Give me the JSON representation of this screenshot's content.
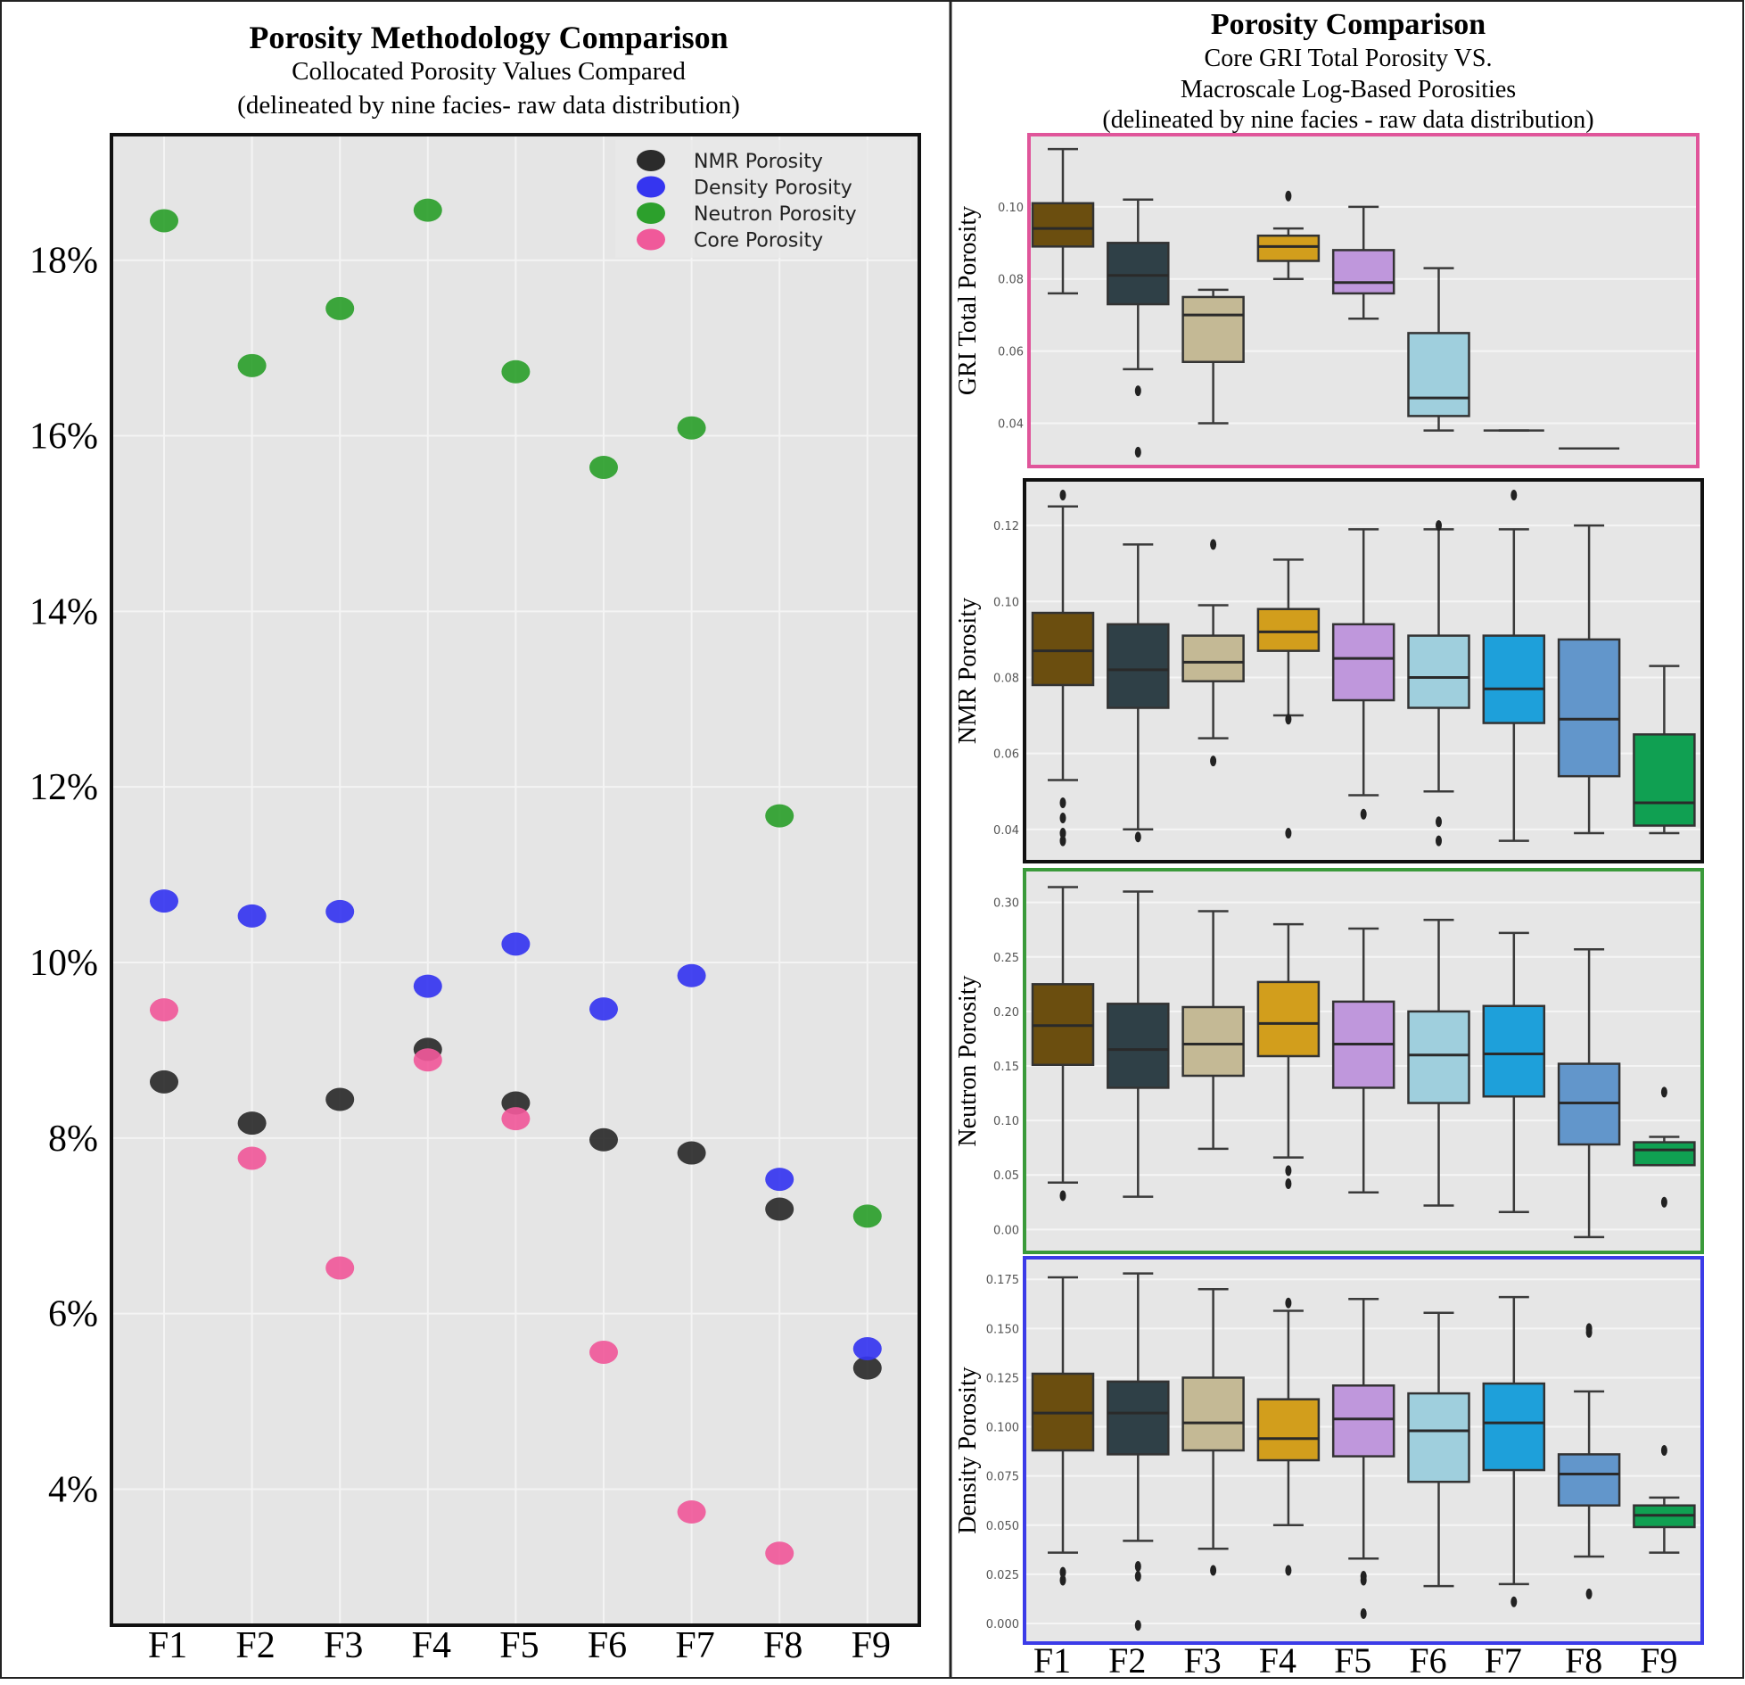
{
  "chart_data": [
    {
      "type": "scatter",
      "title": "Porosity Methodology Comparison",
      "subtitle": [
        "Collocated Porosity Values Compared",
        "(delineated by nine facies- raw data distribution)"
      ],
      "xlabel": "",
      "ylabel": "",
      "categories": [
        "F1",
        "F2",
        "F3",
        "F4",
        "F5",
        "F6",
        "F7",
        "F8",
        "F9"
      ],
      "ylim": [
        2.45,
        19.43
      ],
      "yticks": [
        4,
        6,
        8,
        10,
        12,
        14,
        16,
        18
      ],
      "ytick_labels": [
        "4%",
        "6%",
        "8%",
        "10%",
        "12%",
        "14%",
        "16%",
        "18%"
      ],
      "grid": true,
      "legend_position": "top-right",
      "series": [
        {
          "name": "NMR Porosity",
          "color": "#2b2b2b",
          "values": [
            8.64,
            8.17,
            8.44,
            9.01,
            8.4,
            7.98,
            7.83,
            7.19,
            5.38
          ]
        },
        {
          "name": "Density Porosity",
          "color": "#3535f0",
          "values": [
            10.7,
            10.53,
            10.58,
            9.73,
            10.21,
            9.47,
            9.85,
            7.53,
            5.6
          ]
        },
        {
          "name": "Neutron Porosity",
          "color": "#2ca02c",
          "values": [
            18.45,
            16.8,
            17.45,
            18.57,
            16.73,
            15.64,
            16.09,
            11.67,
            7.11
          ]
        },
        {
          "name": "Core Porosity",
          "color": "#f0599a",
          "values": [
            9.46,
            7.77,
            6.52,
            8.89,
            8.22,
            5.56,
            3.74,
            3.27,
            null
          ]
        }
      ]
    },
    {
      "type": "box",
      "title": "Porosity Comparison",
      "subtitle": [
        "Core GRI Total Porosity VS.",
        "Macroscale Log-Based Porosities",
        "(delineated by nine facies - raw data distribution)"
      ],
      "categories": [
        "F1",
        "F2",
        "F3",
        "F4",
        "F5",
        "F6",
        "F7",
        "F8",
        "F9"
      ],
      "facies_colors": [
        "#6b4e0f",
        "#2f4047",
        "#c4b995",
        "#d29e1c",
        "#bf97dc",
        "#9fcfdd",
        "#1ea0da",
        "#6296cb",
        "#10a052"
      ],
      "panels": [
        {
          "ylabel": "GRI Total Porosity",
          "frame_color": "#e0559a",
          "ylim": [
            0.028,
            0.12
          ],
          "yticks": [
            "0.04",
            "0.06",
            "0.08",
            "0.10"
          ],
          "boxes": [
            {
              "low": 0.076,
              "q1": 0.089,
              "median": 0.094,
              "q3": 0.101,
              "high": 0.116,
              "fliers": []
            },
            {
              "low": 0.055,
              "q1": 0.073,
              "median": 0.081,
              "q3": 0.09,
              "high": 0.102,
              "fliers": [
                0.049,
                0.032
              ]
            },
            {
              "low": 0.04,
              "q1": 0.057,
              "median": 0.07,
              "q3": 0.075,
              "high": 0.077,
              "fliers": []
            },
            {
              "low": 0.08,
              "q1": 0.085,
              "median": 0.089,
              "q3": 0.092,
              "high": 0.094,
              "fliers": [
                0.103
              ]
            },
            {
              "low": 0.069,
              "q1": 0.076,
              "median": 0.079,
              "q3": 0.088,
              "high": 0.1,
              "fliers": []
            },
            {
              "low": 0.038,
              "q1": 0.042,
              "median": 0.047,
              "q3": 0.065,
              "high": 0.083,
              "fliers": []
            },
            {
              "low": 0.038,
              "q1": 0.038,
              "median": 0.038,
              "q3": 0.038,
              "high": 0.038,
              "fliers": []
            },
            {
              "low": 0.033,
              "q1": 0.033,
              "median": 0.033,
              "q3": 0.033,
              "high": 0.033,
              "fliers": []
            },
            null
          ]
        },
        {
          "ylabel": "NMR Porosity",
          "frame_color": "#111111",
          "ylim": [
            0.0315,
            0.132
          ],
          "yticks": [
            "0.04",
            "0.06",
            "0.08",
            "0.10",
            "0.12"
          ],
          "boxes": [
            {
              "low": 0.053,
              "q1": 0.078,
              "median": 0.087,
              "q3": 0.097,
              "high": 0.125,
              "fliers": [
                0.128,
                0.047,
                0.043,
                0.039,
                0.037
              ]
            },
            {
              "low": 0.04,
              "q1": 0.072,
              "median": 0.082,
              "q3": 0.094,
              "high": 0.115,
              "fliers": [
                0.038
              ]
            },
            {
              "low": 0.064,
              "q1": 0.079,
              "median": 0.084,
              "q3": 0.091,
              "high": 0.099,
              "fliers": [
                0.115,
                0.058
              ]
            },
            {
              "low": 0.07,
              "q1": 0.087,
              "median": 0.092,
              "q3": 0.098,
              "high": 0.111,
              "fliers": [
                0.069,
                0.039
              ]
            },
            {
              "low": 0.049,
              "q1": 0.074,
              "median": 0.085,
              "q3": 0.094,
              "high": 0.119,
              "fliers": [
                0.044
              ]
            },
            {
              "low": 0.05,
              "q1": 0.072,
              "median": 0.08,
              "q3": 0.091,
              "high": 0.119,
              "fliers": [
                0.12,
                0.042,
                0.037
              ]
            },
            {
              "low": 0.037,
              "q1": 0.068,
              "median": 0.077,
              "q3": 0.091,
              "high": 0.119,
              "fliers": [
                0.128
              ]
            },
            {
              "low": 0.039,
              "q1": 0.054,
              "median": 0.069,
              "q3": 0.09,
              "high": 0.12,
              "fliers": []
            },
            {
              "low": 0.039,
              "q1": 0.041,
              "median": 0.047,
              "q3": 0.065,
              "high": 0.083,
              "fliers": []
            }
          ]
        },
        {
          "ylabel": "Neutron Porosity",
          "frame_color": "#3a9a3a",
          "ylim": [
            -0.021,
            0.33
          ],
          "yticks": [
            "0.00",
            "0.05",
            "0.10",
            "0.15",
            "0.20",
            "0.25",
            "0.30"
          ],
          "boxes": [
            {
              "low": 0.043,
              "q1": 0.151,
              "median": 0.187,
              "q3": 0.225,
              "high": 0.314,
              "fliers": [
                0.031
              ]
            },
            {
              "low": 0.03,
              "q1": 0.13,
              "median": 0.165,
              "q3": 0.207,
              "high": 0.31,
              "fliers": []
            },
            {
              "low": 0.074,
              "q1": 0.141,
              "median": 0.17,
              "q3": 0.204,
              "high": 0.292,
              "fliers": []
            },
            {
              "low": 0.066,
              "q1": 0.159,
              "median": 0.189,
              "q3": 0.227,
              "high": 0.28,
              "fliers": [
                0.054,
                0.042
              ]
            },
            {
              "low": 0.034,
              "q1": 0.13,
              "median": 0.17,
              "q3": 0.209,
              "high": 0.276,
              "fliers": []
            },
            {
              "low": 0.022,
              "q1": 0.116,
              "median": 0.16,
              "q3": 0.2,
              "high": 0.284,
              "fliers": []
            },
            {
              "low": 0.016,
              "q1": 0.122,
              "median": 0.161,
              "q3": 0.205,
              "high": 0.272,
              "fliers": []
            },
            {
              "low": -0.007,
              "q1": 0.078,
              "median": 0.116,
              "q3": 0.152,
              "high": 0.257,
              "fliers": []
            },
            {
              "low": 0.059,
              "q1": 0.059,
              "median": 0.073,
              "q3": 0.08,
              "high": 0.085,
              "fliers": [
                0.126,
                0.025
              ]
            }
          ]
        },
        {
          "ylabel": "Density Porosity",
          "frame_color": "#3b3be8",
          "ylim": [
            -0.01,
            0.186
          ],
          "yticks": [
            "0.000",
            "0.025",
            "0.050",
            "0.075",
            "0.100",
            "0.125",
            "0.150",
            "0.175"
          ],
          "boxes": [
            {
              "low": 0.036,
              "q1": 0.088,
              "median": 0.107,
              "q3": 0.127,
              "high": 0.176,
              "fliers": [
                0.026,
                0.022
              ]
            },
            {
              "low": 0.042,
              "q1": 0.086,
              "median": 0.107,
              "q3": 0.123,
              "high": 0.178,
              "fliers": [
                0.029,
                0.024,
                -0.001
              ]
            },
            {
              "low": 0.038,
              "q1": 0.088,
              "median": 0.102,
              "q3": 0.125,
              "high": 0.17,
              "fliers": [
                0.027
              ]
            },
            {
              "low": 0.05,
              "q1": 0.083,
              "median": 0.094,
              "q3": 0.114,
              "high": 0.159,
              "fliers": [
                0.163,
                0.027
              ]
            },
            {
              "low": 0.033,
              "q1": 0.085,
              "median": 0.104,
              "q3": 0.121,
              "high": 0.165,
              "fliers": [
                0.024,
                0.022,
                0.005
              ]
            },
            {
              "low": 0.019,
              "q1": 0.072,
              "median": 0.098,
              "q3": 0.117,
              "high": 0.158,
              "fliers": []
            },
            {
              "low": 0.02,
              "q1": 0.078,
              "median": 0.102,
              "q3": 0.122,
              "high": 0.166,
              "fliers": [
                0.011
              ]
            },
            {
              "low": 0.034,
              "q1": 0.06,
              "median": 0.076,
              "q3": 0.086,
              "high": 0.118,
              "fliers": [
                0.15,
                0.148,
                0.015
              ]
            },
            {
              "low": 0.036,
              "q1": 0.049,
              "median": 0.055,
              "q3": 0.06,
              "high": 0.064,
              "fliers": [
                0.088
              ]
            }
          ]
        }
      ]
    }
  ]
}
